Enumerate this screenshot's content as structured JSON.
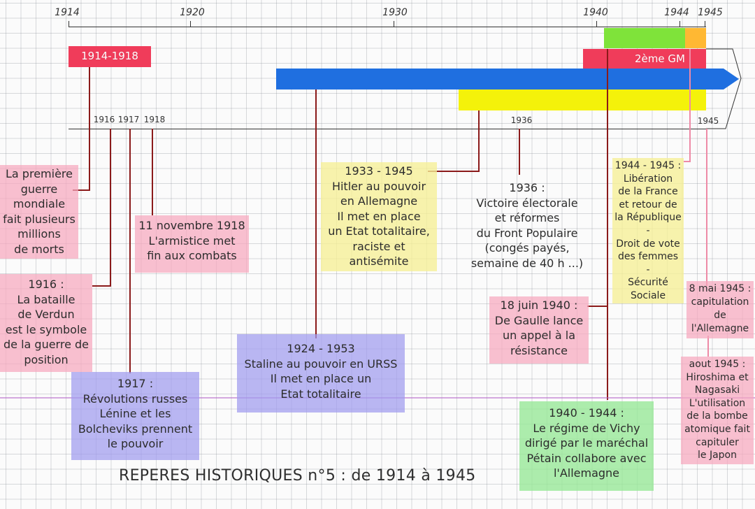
{
  "top_years": [
    "1914",
    "1920",
    "1930",
    "1940",
    "1944",
    "1945"
  ],
  "sub_years": [
    "1916",
    "1917",
    "1918",
    "1936",
    "1945"
  ],
  "bars": {
    "ww1": "1914-1918",
    "ww2": "2ème GM"
  },
  "notes": {
    "ww1": [
      "La première",
      "guerre",
      "mondiale",
      "fait plusieurs",
      "millions",
      "de morts"
    ],
    "armistice": [
      "11 novembre 1918",
      "L'armistice met",
      "fin aux combats"
    ],
    "verdun": [
      "1916 :",
      "La bataille",
      "de Verdun",
      "est le symbole",
      "de la guerre de",
      "position"
    ],
    "russia": [
      "1917 :",
      "Révolutions russes",
      "Lénine et les",
      "Bolcheviks prennent",
      "le pouvoir"
    ],
    "stalin": [
      "1924 - 1953",
      "Staline au pouvoir en URSS",
      "Il met en place un",
      "Etat totalitaire"
    ],
    "hitler": [
      "1933 - 1945",
      "Hitler au pouvoir",
      "en Allemagne",
      "Il met en place",
      "un Etat totalitaire,",
      "raciste et",
      "antisémite"
    ],
    "front": [
      "1936 :",
      "Victoire électorale",
      "et réformes",
      "du Front Populaire",
      "(congés payés,",
      "semaine de 40 h ...)"
    ],
    "degaulle": [
      "18 juin 1940 :",
      "De Gaulle lance",
      "un appel à la",
      "résistance"
    ],
    "vichy": [
      "1940 - 1944 :",
      "Le régime de Vichy",
      "dirigé par le maréchal",
      "Pétain collabore avec",
      "l'Allemagne"
    ],
    "liberation": [
      "1944 - 1945 :",
      "Libération",
      "de la France",
      "et retour de",
      "la République",
      "-",
      "Droit de vote",
      "des femmes",
      "-",
      "Sécurité",
      "Sociale"
    ],
    "capitulation": [
      "8 mai 1945 :",
      "capitulation",
      "de",
      "l'Allemagne"
    ],
    "hiroshima": [
      "aout 1945 :",
      "Hiroshima et",
      "Nagasaki",
      "L'utilisation",
      "de la bombe",
      "atomique fait",
      "capituler",
      "le Japon"
    ]
  },
  "title": "REPERES HISTORIQUES n°5 : de 1914 à 1945",
  "colors": {
    "red": "#f03c5a",
    "blue": "#1f6fe0",
    "yellow": "#f4f20a",
    "green": "#7fe33a",
    "orange": "#ffb833",
    "connector": "#8b1a1a",
    "pink_connector": "#ee8aa6"
  }
}
